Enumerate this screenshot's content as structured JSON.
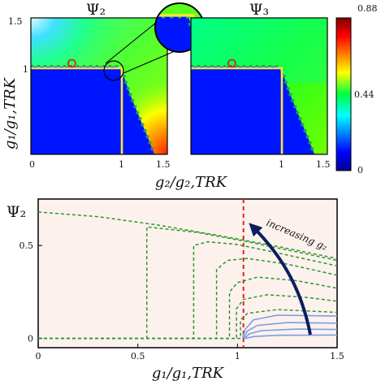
{
  "chart_data": [
    {
      "type": "heatmap",
      "title": "Ψ₂",
      "xlabel": "g₂/g₂,TRK",
      "ylabel": "g₁/g₁,TRK",
      "xlim": [
        0,
        1.5
      ],
      "ylim": [
        0,
        1.5
      ],
      "x_ticks": [
        "0",
        "1",
        "1.5"
      ],
      "y_ticks": [
        "1",
        "1.5"
      ],
      "colorscale": "jet",
      "overlay": "yellow boundary lines at g₁/g₁,TRK = 1 and g₂/g₂,TRK = 1",
      "marker": {
        "x": 0.45,
        "y": 1.0,
        "style": "red circle"
      },
      "inset": "magnified view of the corner near (1, 1)"
    },
    {
      "type": "heatmap",
      "title": "Ψ₃",
      "xlim": [
        0,
        1.5
      ],
      "ylim": [
        0,
        1.5
      ],
      "x_ticks": [
        "1",
        "1.5"
      ],
      "colorscale": "jet",
      "overlay": "yellow boundary lines at g₁/g₁,TRK = 1 and g₂/g₂,TRK = 1",
      "marker": {
        "x": 0.45,
        "y": 1.0,
        "style": "red circle"
      }
    },
    {
      "type": "colorbar",
      "range": [
        0,
        0.88
      ],
      "ticks": [
        "0",
        "0.44",
        "0.88"
      ],
      "colors": [
        "#00008f",
        "#0000ff",
        "#00ffff",
        "#00ff00",
        "#ffff00",
        "#ff0000",
        "#800000"
      ]
    },
    {
      "type": "line",
      "ylabel": "Ψ₂",
      "xlabel": "g₁/g₁,TRK",
      "xlim": [
        0,
        1.5
      ],
      "ylim": [
        -0.05,
        0.75
      ],
      "x_ticks": [
        "0",
        "0.5",
        "1",
        "1.5"
      ],
      "y_ticks": [
        "0",
        "0.5"
      ],
      "vertical_reference": {
        "x": 1.03,
        "style": "red dashed"
      },
      "annotation": {
        "text": "increasing g₂"
      },
      "series": [
        {
          "style": "green-dashed",
          "points": [
            [
              0,
              0.68
            ],
            [
              0.3,
              0.655
            ],
            [
              0.6,
              0.61
            ],
            [
              0.9,
              0.555
            ],
            [
              1.2,
              0.495
            ],
            [
              1.5,
              0.43
            ]
          ]
        },
        {
          "style": "green-dashed",
          "points": [
            [
              0,
              0
            ],
            [
              0.545,
              0
            ],
            [
              0.545,
              0.6
            ],
            [
              0.8,
              0.57
            ],
            [
              1.05,
              0.52
            ],
            [
              1.3,
              0.465
            ],
            [
              1.5,
              0.42
            ]
          ]
        },
        {
          "style": "green-dashed",
          "points": [
            [
              0,
              0
            ],
            [
              0.78,
              0
            ],
            [
              0.78,
              0.5
            ],
            [
              0.85,
              0.52
            ],
            [
              1.0,
              0.505
            ],
            [
              1.2,
              0.46
            ],
            [
              1.5,
              0.39
            ]
          ]
        },
        {
          "style": "green-dashed",
          "points": [
            [
              0,
              0
            ],
            [
              0.895,
              0
            ],
            [
              0.895,
              0.37
            ],
            [
              0.95,
              0.42
            ],
            [
              1.05,
              0.43
            ],
            [
              1.25,
              0.4
            ],
            [
              1.5,
              0.34
            ]
          ]
        },
        {
          "style": "green-dashed",
          "points": [
            [
              0,
              0
            ],
            [
              0.96,
              0
            ],
            [
              0.96,
              0.25
            ],
            [
              1.0,
              0.3
            ],
            [
              1.1,
              0.33
            ],
            [
              1.3,
              0.31
            ],
            [
              1.5,
              0.27
            ]
          ]
        },
        {
          "style": "green-dashed",
          "points": [
            [
              0,
              0
            ],
            [
              0.995,
              0
            ],
            [
              0.995,
              0.16
            ],
            [
              1.03,
              0.21
            ],
            [
              1.15,
              0.235
            ],
            [
              1.35,
              0.22
            ],
            [
              1.5,
              0.2
            ]
          ]
        },
        {
          "style": "green-dashed",
          "points": [
            [
              0,
              0
            ],
            [
              1.015,
              0
            ],
            [
              1.015,
              0.1
            ],
            [
              1.05,
              0.135
            ],
            [
              1.2,
              0.155
            ],
            [
              1.5,
              0.14
            ]
          ]
        },
        {
          "style": "blue-solid",
          "points": [
            [
              1.025,
              0
            ],
            [
              1.04,
              0.05
            ],
            [
              1.08,
              0.1
            ],
            [
              1.2,
              0.125
            ],
            [
              1.5,
              0.12
            ]
          ]
        },
        {
          "style": "blue-solid",
          "points": [
            [
              1.03,
              0
            ],
            [
              1.05,
              0.04
            ],
            [
              1.1,
              0.07
            ],
            [
              1.25,
              0.085
            ],
            [
              1.5,
              0.082
            ]
          ]
        },
        {
          "style": "blue-solid",
          "points": [
            [
              1.035,
              0
            ],
            [
              1.06,
              0.025
            ],
            [
              1.12,
              0.042
            ],
            [
              1.3,
              0.05
            ],
            [
              1.5,
              0.048
            ]
          ]
        },
        {
          "style": "blue-solid",
          "points": [
            [
              1.04,
              0
            ],
            [
              1.08,
              0.01
            ],
            [
              1.2,
              0.017
            ],
            [
              1.5,
              0.018
            ]
          ]
        }
      ]
    }
  ]
}
